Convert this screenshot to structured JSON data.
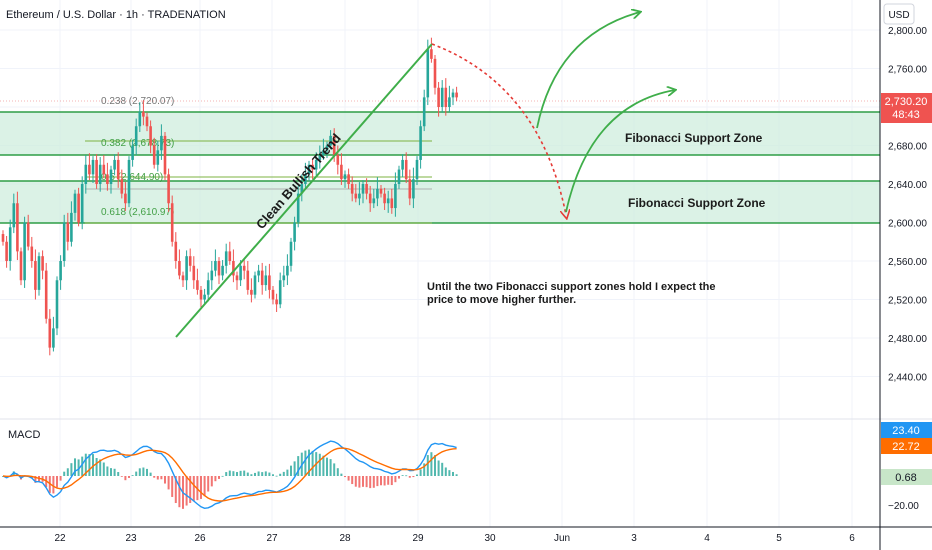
{
  "header": {
    "symbol_title": "Ethereum / U.S. Dollar · 1h · TRADENATION",
    "currency": "USD"
  },
  "colors": {
    "up": "#26a69a",
    "down": "#ef5350",
    "zone_fill": "#cfeedd",
    "zone_line": "#2e9d46",
    "arrow_green": "#3fae4a",
    "arrow_red": "#e53935",
    "macd_line": "#2196f3",
    "signal_line": "#ff6d00",
    "price_tag": "#ef5350",
    "macd_tag": "#2196f3",
    "signal_tag": "#ff6d00",
    "hist_tag": "#c8e6c9"
  },
  "price_axis": {
    "labels": [
      "2,800.00",
      "2,760.00",
      "2,720.00",
      "2,680.00",
      "2,640.00",
      "2,600.00",
      "2,560.00",
      "2,520.00",
      "2,480.00",
      "2,440.00"
    ],
    "current_price": "2,730.20",
    "countdown": "48:43"
  },
  "macd_axis": {
    "labels": [
      "−20.00"
    ],
    "macd_value": "23.40",
    "signal_value": "22.72",
    "hist_value": "0.68"
  },
  "time_axis": {
    "labels": [
      "22",
      "23",
      "26",
      "27",
      "28",
      "29",
      "30",
      "Jun",
      "3",
      "4",
      "5",
      "6"
    ]
  },
  "fib_levels": [
    {
      "label": "0.238 (2,720.07)"
    },
    {
      "label": "0.382 (2,678.73)"
    },
    {
      "label": "0.5 (2,644.90)"
    },
    {
      "label": "0.618 (2,610.97)"
    }
  ],
  "annotations": {
    "trend_label": "Clean Bullish Trend",
    "zone_upper_label": "Fibonacci Support Zone",
    "zone_lower_label": "Fibonacci Support Zone",
    "note_line1": "Until the two Fibonacci support zones hold I expect the",
    "note_line2": "price to move higher further."
  },
  "indicator": {
    "name": "MACD"
  },
  "chart_data": {
    "type": "candlestick",
    "title": "Ethereum / U.S. Dollar · 1h · TRADENATION",
    "ylabel": "USD",
    "ylim": [
      2420,
      2810
    ],
    "candles_close": [
      2580,
      2560,
      2595,
      2620,
      2570,
      2540,
      2600,
      2575,
      2560,
      2530,
      2565,
      2550,
      2500,
      2470,
      2490,
      2540,
      2560,
      2600,
      2580,
      2610,
      2630,
      2600,
      2640,
      2660,
      2650,
      2665,
      2640,
      2660,
      2650,
      2640,
      2655,
      2665,
      2645,
      2630,
      2620,
      2665,
      2680,
      2700,
      2715,
      2710,
      2700,
      2680,
      2660,
      2675,
      2690,
      2650,
      2620,
      2580,
      2560,
      2545,
      2540,
      2565,
      2555,
      2540,
      2530,
      2520,
      2525,
      2540,
      2550,
      2560,
      2545,
      2555,
      2570,
      2560,
      2545,
      2540,
      2555,
      2550,
      2530,
      2525,
      2545,
      2550,
      2535,
      2545,
      2530,
      2520,
      2515,
      2540,
      2545,
      2555,
      2580,
      2600,
      2630,
      2640,
      2650,
      2660,
      2655,
      2665,
      2670,
      2675,
      2680,
      2690,
      2670,
      2660,
      2645,
      2650,
      2640,
      2630,
      2625,
      2630,
      2640,
      2630,
      2620,
      2625,
      2635,
      2630,
      2620,
      2625,
      2615,
      2640,
      2655,
      2665,
      2645,
      2625,
      2645,
      2665,
      2700,
      2730,
      2780,
      2770,
      2740,
      2720,
      2740,
      2720,
      2730,
      2735,
      2730
    ],
    "fib_prices": [
      2720.07,
      2678.73,
      2644.9,
      2610.97
    ],
    "support_zones": [
      [
        2678.73,
        2720.07
      ],
      [
        2610.97,
        2644.9
      ]
    ],
    "last_price": 2730.2,
    "macd": {
      "macd": 23.4,
      "signal": 22.72,
      "histogram": 0.68
    }
  }
}
